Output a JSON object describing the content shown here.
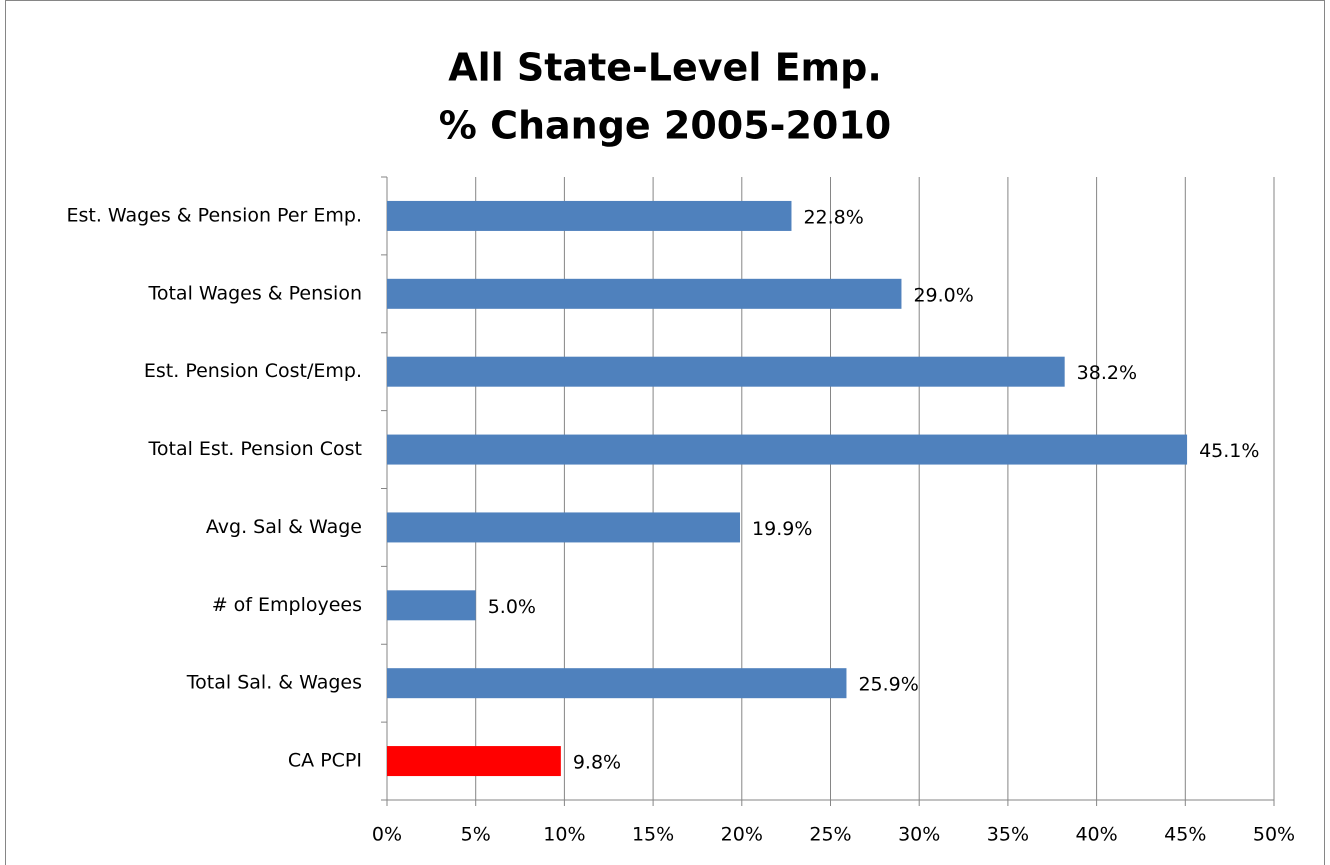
{
  "chart_data": {
    "type": "bar",
    "orientation": "horizontal",
    "title": [
      "All State-Level Emp.",
      "% Change 2005-2010"
    ],
    "categories": [
      "Est. Wages & Pension Per Emp.",
      "Total Wages & Pension",
      "Est. Pension Cost/Emp.",
      "Total Est. Pension Cost",
      "Avg. Sal & Wage",
      "# of Employees",
      "Total Sal. & Wages",
      "CA PCPI"
    ],
    "values": [
      22.8,
      29.0,
      38.2,
      45.1,
      19.9,
      5.0,
      25.9,
      9.8
    ],
    "value_labels": [
      "22.8%",
      "29.0%",
      "38.2%",
      "45.1%",
      "19.9%",
      "5.0%",
      "25.9%",
      "9.8%"
    ],
    "colors": [
      "#4f81bd",
      "#4f81bd",
      "#4f81bd",
      "#4f81bd",
      "#4f81bd",
      "#4f81bd",
      "#4f81bd",
      "#ff0000"
    ],
    "xlim": [
      0,
      50
    ],
    "xticks": [
      {
        "value": 0,
        "label": "0%"
      },
      {
        "value": 5,
        "label": "5%"
      },
      {
        "value": 10,
        "label": "10%"
      },
      {
        "value": 15,
        "label": "15%"
      },
      {
        "value": 20,
        "label": "20%"
      },
      {
        "value": 25,
        "label": "25%"
      },
      {
        "value": 30,
        "label": "30%"
      },
      {
        "value": 35,
        "label": "35%"
      },
      {
        "value": 40,
        "label": "40%"
      },
      {
        "value": 45,
        "label": "45%"
      },
      {
        "value": 50,
        "label": "50%"
      }
    ],
    "grid": true
  }
}
